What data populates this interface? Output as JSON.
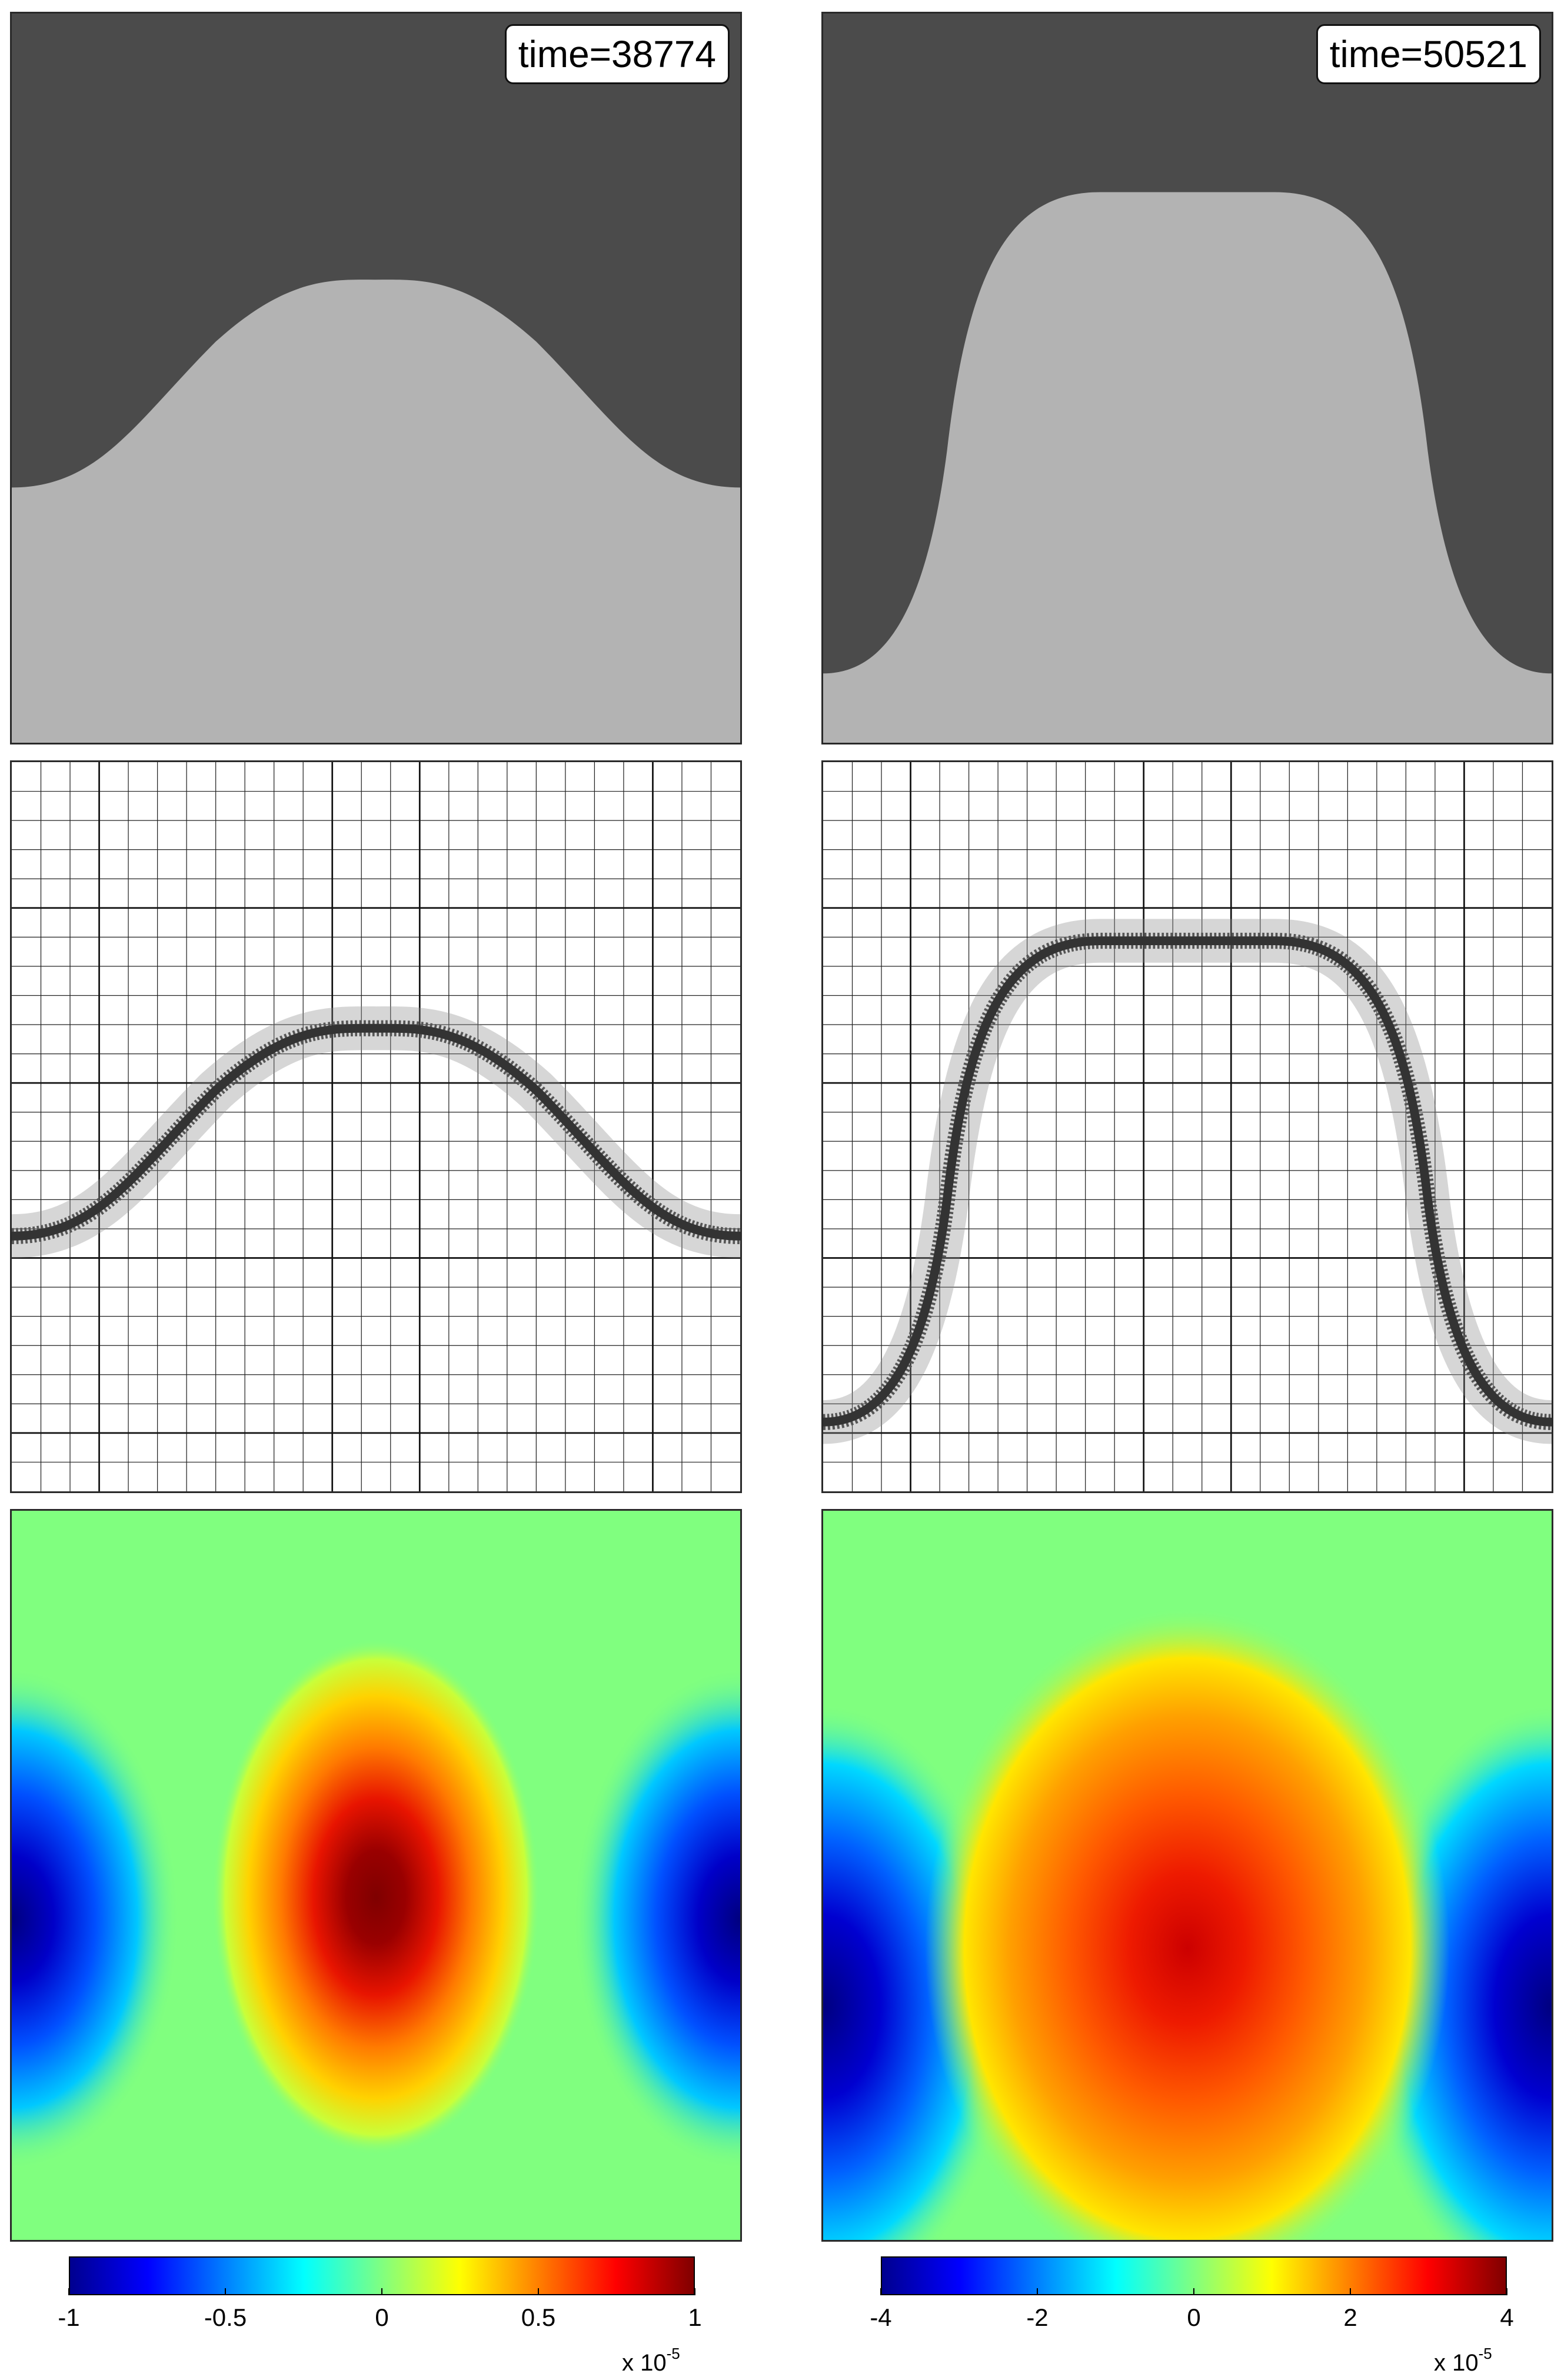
{
  "columns": [
    {
      "time_label": "time=38774",
      "colorbar": {
        "ticks": [
          "-1",
          "-0.5",
          "0",
          "0.5",
          "1"
        ],
        "tick_values": [
          -1,
          -0.5,
          0,
          0.5,
          1
        ],
        "range": [
          -1,
          1
        ],
        "exponent_prefix": "x 10",
        "exponent_power": "-5"
      }
    },
    {
      "time_label": "time=50521",
      "colorbar": {
        "ticks": [
          "-4",
          "-2",
          "0",
          "2",
          "4"
        ],
        "tick_values": [
          -4,
          -2,
          0,
          2,
          4
        ],
        "range": [
          -4,
          4
        ],
        "exponent_prefix": "x 10",
        "exponent_power": "-5"
      }
    }
  ],
  "colors": {
    "phase_dark": "#4b4b4b",
    "phase_light": "#b3b3b3",
    "mesh_line": "#222222",
    "colormap": "jet"
  }
}
